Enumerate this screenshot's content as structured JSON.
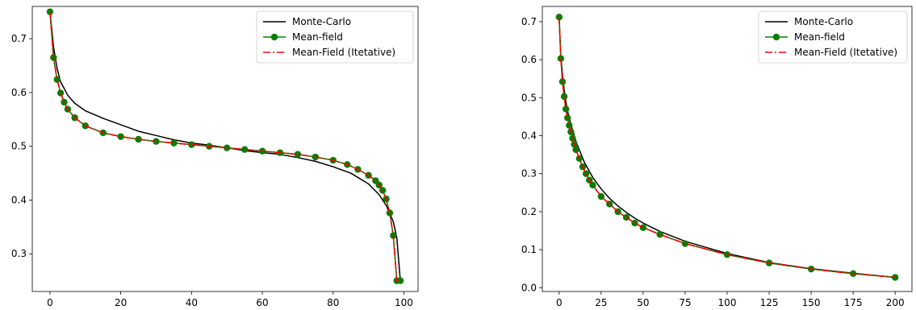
{
  "legend_labels": [
    "Monte-Carlo",
    "Mean-field",
    "Mean-Field (Itetative)"
  ],
  "colors": {
    "monte_carlo": "#000000",
    "mean_field": "#008000",
    "mean_field_iterative": "#ff0000",
    "axes": "#000000",
    "legend_border": "#cccccc"
  },
  "chart_data": [
    {
      "type": "line",
      "title": "",
      "xlabel": "",
      "ylabel": "",
      "xlim": [
        -5,
        104
      ],
      "ylim": [
        0.23,
        0.76
      ],
      "xticks": [
        0,
        20,
        40,
        60,
        80,
        100
      ],
      "yticks": [
        0.3,
        0.4,
        0.5,
        0.6,
        0.7
      ],
      "grid": false,
      "legend_position": "top-right",
      "legend": [
        "Monte-Carlo",
        "Mean-field",
        "Mean-Field (Itetative)"
      ],
      "series": [
        {
          "name": "Monte-Carlo",
          "style": "solid",
          "x": [
            0,
            1,
            2,
            3,
            5,
            7,
            10,
            15,
            20,
            25,
            30,
            35,
            40,
            45,
            50,
            55,
            60,
            65,
            70,
            75,
            80,
            85,
            90,
            93,
            95,
            97,
            98,
            99
          ],
          "y": [
            0.75,
            0.685,
            0.645,
            0.62,
            0.595,
            0.58,
            0.566,
            0.552,
            0.54,
            0.528,
            0.52,
            0.512,
            0.506,
            0.502,
            0.497,
            0.492,
            0.488,
            0.485,
            0.479,
            0.472,
            0.462,
            0.45,
            0.43,
            0.41,
            0.39,
            0.36,
            0.33,
            0.25
          ]
        },
        {
          "name": "Mean-field",
          "style": "solid-markers",
          "x": [
            0,
            1,
            2,
            3,
            4,
            5,
            7,
            10,
            15,
            20,
            25,
            30,
            35,
            40,
            45,
            50,
            55,
            60,
            65,
            70,
            75,
            80,
            84,
            87,
            90,
            92,
            93,
            94,
            95,
            96,
            97,
            98,
            99
          ],
          "y": [
            0.75,
            0.665,
            0.624,
            0.599,
            0.582,
            0.569,
            0.553,
            0.538,
            0.525,
            0.518,
            0.513,
            0.509,
            0.506,
            0.503,
            0.5,
            0.497,
            0.494,
            0.491,
            0.488,
            0.485,
            0.48,
            0.474,
            0.466,
            0.457,
            0.446,
            0.436,
            0.428,
            0.418,
            0.402,
            0.376,
            0.334,
            0.25,
            0.25
          ]
        },
        {
          "name": "Mean-Field (Itetative)",
          "style": "dashdot",
          "x": [
            0,
            1,
            2,
            3,
            4,
            5,
            7,
            10,
            15,
            20,
            25,
            30,
            35,
            40,
            45,
            50,
            55,
            60,
            65,
            70,
            75,
            80,
            84,
            87,
            90,
            92,
            93,
            94,
            95,
            96,
            97,
            98,
            99
          ],
          "y": [
            0.75,
            0.665,
            0.624,
            0.599,
            0.582,
            0.569,
            0.553,
            0.538,
            0.525,
            0.518,
            0.513,
            0.509,
            0.506,
            0.503,
            0.5,
            0.497,
            0.494,
            0.491,
            0.488,
            0.485,
            0.48,
            0.474,
            0.466,
            0.457,
            0.446,
            0.436,
            0.428,
            0.418,
            0.402,
            0.376,
            0.334,
            0.25,
            0.25
          ]
        }
      ]
    },
    {
      "type": "line",
      "title": "",
      "xlabel": "",
      "ylabel": "",
      "xlim": [
        -10,
        210
      ],
      "ylim": [
        -0.01,
        0.74
      ],
      "xticks": [
        0,
        25,
        50,
        75,
        100,
        125,
        150,
        175,
        200
      ],
      "yticks": [
        0.0,
        0.1,
        0.2,
        0.3,
        0.4,
        0.5,
        0.6,
        0.7
      ],
      "grid": false,
      "legend_position": "top-right",
      "legend": [
        "Monte-Carlo",
        "Mean-field",
        "Mean-Field (Itetative)"
      ],
      "series": [
        {
          "name": "Monte-Carlo",
          "style": "solid",
          "x": [
            0,
            1,
            2,
            3,
            4,
            5,
            7,
            10,
            15,
            20,
            25,
            30,
            35,
            40,
            45,
            50,
            60,
            75,
            100,
            125,
            150,
            175,
            200
          ],
          "y": [
            0.71,
            0.61,
            0.56,
            0.52,
            0.49,
            0.465,
            0.43,
            0.385,
            0.33,
            0.29,
            0.26,
            0.235,
            0.215,
            0.198,
            0.183,
            0.17,
            0.148,
            0.122,
            0.09,
            0.066,
            0.05,
            0.038,
            0.027
          ]
        },
        {
          "name": "Mean-field",
          "style": "solid-markers",
          "x": [
            0,
            1,
            2,
            3,
            4,
            5,
            6,
            7,
            8,
            9,
            10,
            12,
            14,
            16,
            18,
            20,
            25,
            30,
            35,
            40,
            45,
            50,
            60,
            75,
            100,
            125,
            150,
            175,
            200
          ],
          "y": [
            0.712,
            0.603,
            0.542,
            0.503,
            0.47,
            0.447,
            0.427,
            0.41,
            0.393,
            0.377,
            0.363,
            0.34,
            0.318,
            0.3,
            0.283,
            0.27,
            0.24,
            0.22,
            0.2,
            0.185,
            0.17,
            0.158,
            0.14,
            0.116,
            0.087,
            0.065,
            0.049,
            0.037,
            0.027
          ]
        },
        {
          "name": "Mean-Field (Itetative)",
          "style": "dashdot",
          "x": [
            0,
            1,
            2,
            3,
            4,
            5,
            6,
            7,
            8,
            9,
            10,
            12,
            14,
            16,
            18,
            20,
            25,
            30,
            35,
            40,
            45,
            50,
            60,
            75,
            100,
            125,
            150,
            175,
            200
          ],
          "y": [
            0.712,
            0.603,
            0.542,
            0.503,
            0.47,
            0.447,
            0.427,
            0.41,
            0.393,
            0.377,
            0.363,
            0.34,
            0.318,
            0.3,
            0.283,
            0.27,
            0.24,
            0.22,
            0.2,
            0.185,
            0.17,
            0.158,
            0.14,
            0.116,
            0.087,
            0.065,
            0.049,
            0.037,
            0.027
          ]
        }
      ]
    }
  ]
}
